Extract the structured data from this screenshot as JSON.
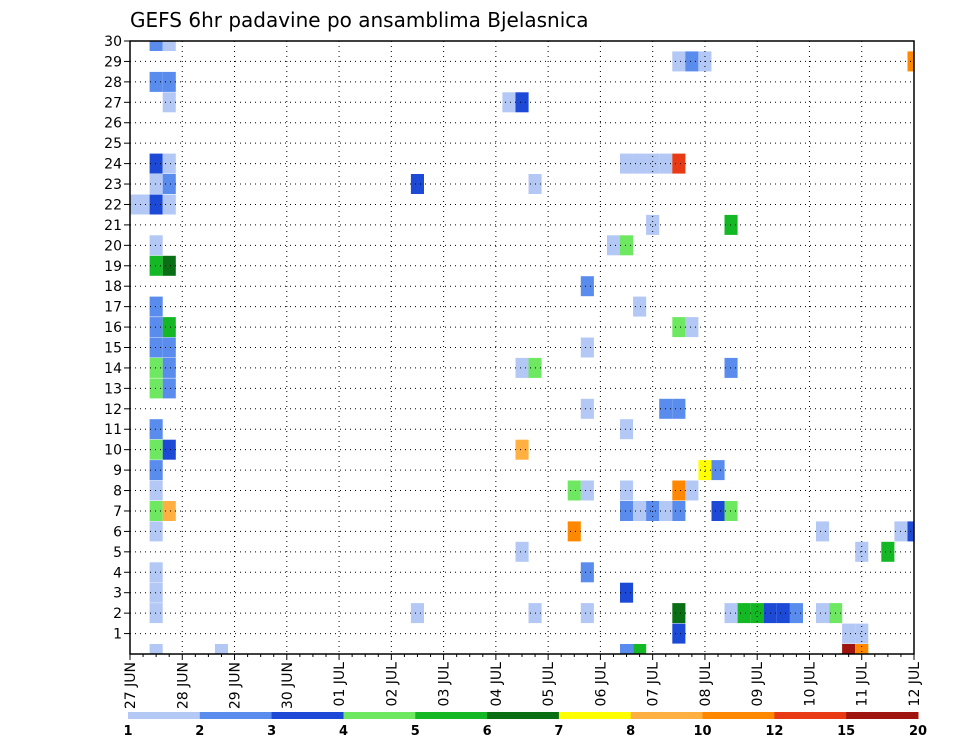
{
  "chart_data": {
    "type": "heatmap",
    "title": "GEFS 6hr padavine po ansamblima Bjelasnica",
    "x_labels": [
      "27 JUN",
      "28 JUN",
      "29 JUN",
      "30 JUN",
      "01 JUL",
      "02 JUL",
      "03 JUL",
      "04 JUL",
      "05 JUL",
      "06 JUL",
      "07 JUL",
      "08 JUL",
      "09 JUL",
      "10 JUL",
      "11 JUL",
      "12 JUL"
    ],
    "xlim": [
      0,
      60
    ],
    "y_labels": [
      "1",
      "2",
      "3",
      "4",
      "5",
      "6",
      "7",
      "8",
      "9",
      "10",
      "11",
      "12",
      "13",
      "14",
      "15",
      "16",
      "17",
      "18",
      "19",
      "20",
      "21",
      "22",
      "23",
      "24",
      "25",
      "26",
      "27",
      "28",
      "29",
      "30"
    ],
    "ylim": [
      0,
      30
    ],
    "grid": true,
    "colorbar": {
      "labels": [
        "1",
        "2",
        "3",
        "4",
        "5",
        "6",
        "7",
        "8",
        "10",
        "12",
        "15",
        "20"
      ],
      "colors": [
        "#b4c8f5",
        "#5a8cee",
        "#1c4ad6",
        "#6ee860",
        "#14b824",
        "#0a6e14",
        "#ffff00",
        "#ffb040",
        "#ff8800",
        "#e83a14",
        "#a01410",
        "#6e0a0a"
      ]
    },
    "cells": [
      {
        "t": 2,
        "m": 0,
        "c": 0
      },
      {
        "t": 2,
        "m": 30,
        "c": 1
      },
      {
        "t": 3,
        "m": 30,
        "c": 0
      },
      {
        "t": 7,
        "m": 0,
        "c": 0
      },
      {
        "t": 2,
        "m": 2,
        "c": 0
      },
      {
        "t": 2,
        "m": 3,
        "c": 0
      },
      {
        "t": 2,
        "m": 4,
        "c": 0
      },
      {
        "t": 2,
        "m": 6,
        "c": 0
      },
      {
        "t": 2,
        "m": 7,
        "c": 3
      },
      {
        "t": 3,
        "m": 7,
        "c": 7
      },
      {
        "t": 2,
        "m": 8,
        "c": 0
      },
      {
        "t": 2,
        "m": 9,
        "c": 1
      },
      {
        "t": 2,
        "m": 10,
        "c": 3
      },
      {
        "t": 3,
        "m": 10,
        "c": 2
      },
      {
        "t": 2,
        "m": 11,
        "c": 1
      },
      {
        "t": 2,
        "m": 13,
        "c": 3
      },
      {
        "t": 3,
        "m": 13,
        "c": 1
      },
      {
        "t": 2,
        "m": 14,
        "c": 3
      },
      {
        "t": 3,
        "m": 14,
        "c": 1
      },
      {
        "t": 2,
        "m": 15,
        "c": 1
      },
      {
        "t": 3,
        "m": 15,
        "c": 1
      },
      {
        "t": 2,
        "m": 16,
        "c": 1
      },
      {
        "t": 3,
        "m": 16,
        "c": 4
      },
      {
        "t": 2,
        "m": 17,
        "c": 1
      },
      {
        "t": 2,
        "m": 19,
        "c": 4
      },
      {
        "t": 3,
        "m": 19,
        "c": 5
      },
      {
        "t": 2,
        "m": 20,
        "c": 0
      },
      {
        "t": 0,
        "m": 22,
        "c": 0
      },
      {
        "t": 1,
        "m": 22,
        "c": 0
      },
      {
        "t": 2,
        "m": 22,
        "c": 2
      },
      {
        "t": 3,
        "m": 22,
        "c": 0
      },
      {
        "t": 2,
        "m": 23,
        "c": 0
      },
      {
        "t": 3,
        "m": 23,
        "c": 1
      },
      {
        "t": 2,
        "m": 24,
        "c": 2
      },
      {
        "t": 3,
        "m": 24,
        "c": 0
      },
      {
        "t": 3,
        "m": 27,
        "c": 0
      },
      {
        "t": 2,
        "m": 28,
        "c": 1
      },
      {
        "t": 3,
        "m": 28,
        "c": 1
      },
      {
        "t": 22,
        "m": 2,
        "c": 0
      },
      {
        "t": 22,
        "m": 23,
        "c": 2
      },
      {
        "t": 29,
        "m": 27,
        "c": 0
      },
      {
        "t": 30,
        "m": 27,
        "c": 2
      },
      {
        "t": 30,
        "m": 14,
        "c": 0
      },
      {
        "t": 31,
        "m": 14,
        "c": 3
      },
      {
        "t": 30,
        "m": 10,
        "c": 7
      },
      {
        "t": 30,
        "m": 5,
        "c": 0
      },
      {
        "t": 31,
        "m": 2,
        "c": 0
      },
      {
        "t": 31,
        "m": 23,
        "c": 0
      },
      {
        "t": 34,
        "m": 8,
        "c": 3
      },
      {
        "t": 35,
        "m": 8,
        "c": 0
      },
      {
        "t": 34,
        "m": 6,
        "c": 8
      },
      {
        "t": 35,
        "m": 18,
        "c": 1
      },
      {
        "t": 35,
        "m": 15,
        "c": 0
      },
      {
        "t": 35,
        "m": 12,
        "c": 0
      },
      {
        "t": 35,
        "m": 4,
        "c": 1
      },
      {
        "t": 35,
        "m": 2,
        "c": 0
      },
      {
        "t": 37,
        "m": 20,
        "c": 0
      },
      {
        "t": 38,
        "m": 20,
        "c": 3
      },
      {
        "t": 38,
        "m": 24,
        "c": 0
      },
      {
        "t": 39,
        "m": 24,
        "c": 0
      },
      {
        "t": 40,
        "m": 24,
        "c": 0
      },
      {
        "t": 41,
        "m": 24,
        "c": 0
      },
      {
        "t": 42,
        "m": 24,
        "c": 9
      },
      {
        "t": 38,
        "m": 11,
        "c": 0
      },
      {
        "t": 38,
        "m": 8,
        "c": 0
      },
      {
        "t": 38,
        "m": 7,
        "c": 1
      },
      {
        "t": 39,
        "m": 7,
        "c": 0
      },
      {
        "t": 40,
        "m": 7,
        "c": 1
      },
      {
        "t": 41,
        "m": 7,
        "c": 0
      },
      {
        "t": 42,
        "m": 7,
        "c": 1
      },
      {
        "t": 38,
        "m": 3,
        "c": 2
      },
      {
        "t": 38,
        "m": 0,
        "c": 1
      },
      {
        "t": 39,
        "m": 0,
        "c": 4
      },
      {
        "t": 39,
        "m": 17,
        "c": 0
      },
      {
        "t": 40,
        "m": 21,
        "c": 0
      },
      {
        "t": 41,
        "m": 12,
        "c": 1
      },
      {
        "t": 42,
        "m": 12,
        "c": 1
      },
      {
        "t": 42,
        "m": 16,
        "c": 3
      },
      {
        "t": 43,
        "m": 16,
        "c": 0
      },
      {
        "t": 42,
        "m": 8,
        "c": 8
      },
      {
        "t": 43,
        "m": 8,
        "c": 0
      },
      {
        "t": 42,
        "m": 2,
        "c": 5
      },
      {
        "t": 42,
        "m": 1,
        "c": 2
      },
      {
        "t": 42,
        "m": 29,
        "c": 0
      },
      {
        "t": 43,
        "m": 29,
        "c": 1
      },
      {
        "t": 44,
        "m": 29,
        "c": 0
      },
      {
        "t": 44,
        "m": 9,
        "c": 6
      },
      {
        "t": 45,
        "m": 9,
        "c": 1
      },
      {
        "t": 45,
        "m": 7,
        "c": 2
      },
      {
        "t": 46,
        "m": 7,
        "c": 3
      },
      {
        "t": 46,
        "m": 21,
        "c": 4
      },
      {
        "t": 46,
        "m": 14,
        "c": 1
      },
      {
        "t": 46,
        "m": 2,
        "c": 0
      },
      {
        "t": 47,
        "m": 2,
        "c": 4
      },
      {
        "t": 48,
        "m": 2,
        "c": 4
      },
      {
        "t": 49,
        "m": 2,
        "c": 2
      },
      {
        "t": 50,
        "m": 2,
        "c": 2
      },
      {
        "t": 51,
        "m": 2,
        "c": 1
      },
      {
        "t": 53,
        "m": 2,
        "c": 0
      },
      {
        "t": 54,
        "m": 2,
        "c": 3
      },
      {
        "t": 53,
        "m": 6,
        "c": 0
      },
      {
        "t": 55,
        "m": 1,
        "c": 0
      },
      {
        "t": 56,
        "m": 1,
        "c": 0
      },
      {
        "t": 55,
        "m": 0,
        "c": 10
      },
      {
        "t": 56,
        "m": 0,
        "c": 8
      },
      {
        "t": 56,
        "m": 5,
        "c": 0
      },
      {
        "t": 58,
        "m": 5,
        "c": 4
      },
      {
        "t": 59,
        "m": 6,
        "c": 0
      },
      {
        "t": 60,
        "m": 6,
        "c": 2
      },
      {
        "t": 60,
        "m": 29,
        "c": 8
      }
    ]
  }
}
